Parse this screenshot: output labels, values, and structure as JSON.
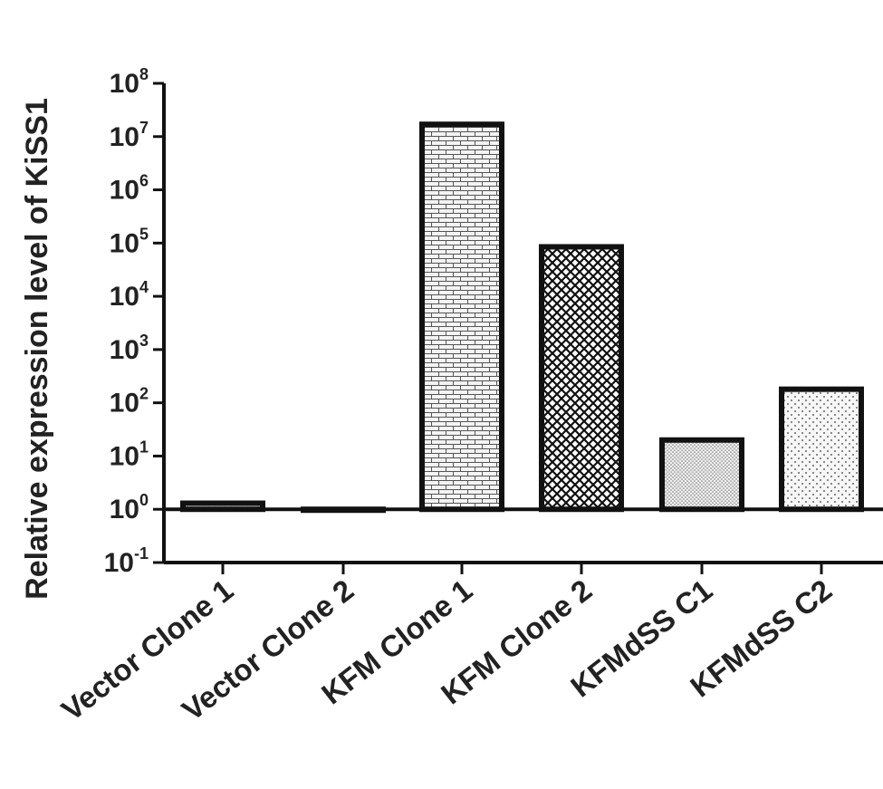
{
  "chart_data": {
    "type": "bar",
    "ylabel": "Relative expression level of KiSS1",
    "xlabel": "",
    "title": "",
    "y_scale": "log10",
    "ylim": [
      0.1,
      100000000
    ],
    "y_ticks": [
      {
        "value": 0.1,
        "base": "10",
        "exp": "-1"
      },
      {
        "value": 1,
        "base": "10",
        "exp": "0"
      },
      {
        "value": 10,
        "base": "10",
        "exp": "1"
      },
      {
        "value": 100,
        "base": "10",
        "exp": "2"
      },
      {
        "value": 1000,
        "base": "10",
        "exp": "3"
      },
      {
        "value": 10000,
        "base": "10",
        "exp": "4"
      },
      {
        "value": 100000,
        "base": "10",
        "exp": "5"
      },
      {
        "value": 1000000,
        "base": "10",
        "exp": "6"
      },
      {
        "value": 10000000,
        "base": "10",
        "exp": "7"
      },
      {
        "value": 100000000,
        "base": "10",
        "exp": "8"
      }
    ],
    "baseline": 1,
    "categories": [
      "Vector Clone 1",
      "Vector Clone 2",
      "KFM Clone 1",
      "KFM Clone 2",
      "KFMdSS C1",
      "KFMdSS C2"
    ],
    "values": [
      1.3,
      1.0,
      17000000,
      85000,
      20,
      180
    ],
    "patterns": [
      "dots-dense",
      "solid-line",
      "brick",
      "crosshatch",
      "fine-dots",
      "sparse-dots"
    ],
    "grid": false,
    "legend": "none"
  }
}
